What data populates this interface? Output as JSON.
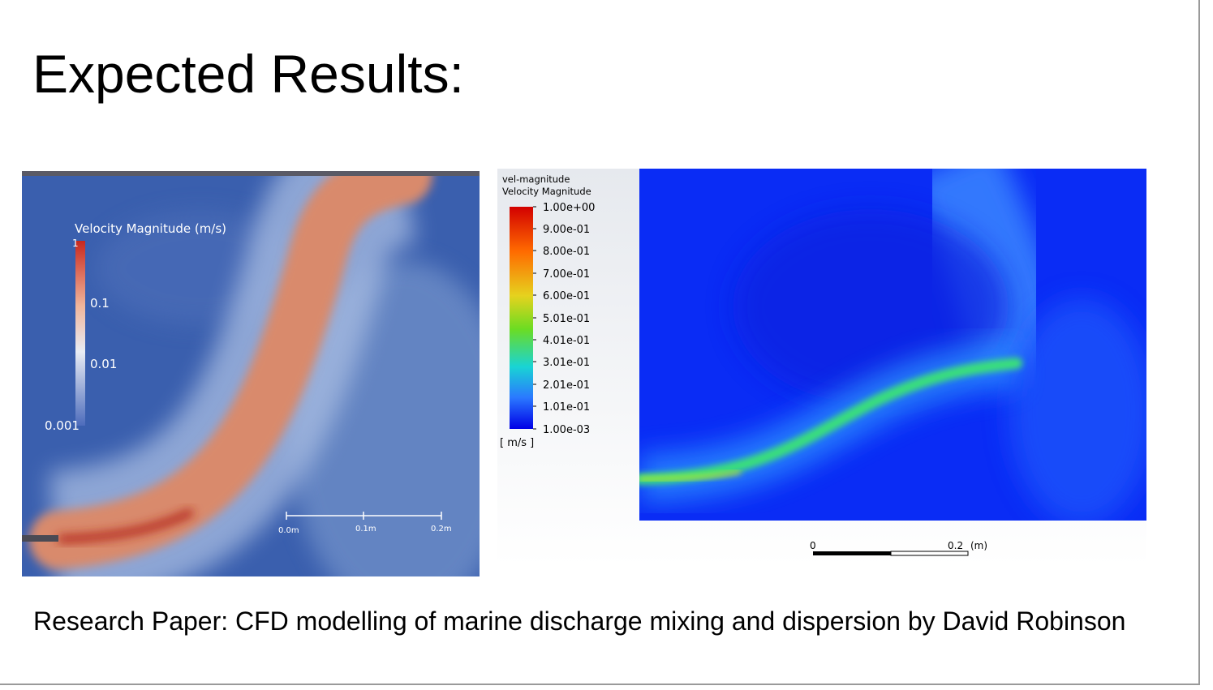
{
  "slide": {
    "title": "Expected Results:",
    "caption": "Research Paper: CFD modelling of marine discharge mixing and dispersion by David Robinson"
  },
  "figure_left": {
    "legend_title": "Velocity Magnitude (m/s)",
    "legend_ticks": [
      "1",
      "0.1",
      "0.01",
      "0.001"
    ],
    "scale_labels": [
      "0.0m",
      "0.1m",
      "0.2m"
    ]
  },
  "figure_right": {
    "legend_title_1": "vel-magnitude",
    "legend_title_2": "Velocity Magnitude",
    "legend_ticks": [
      "1.00e+00",
      "9.00e-01",
      "8.00e-01",
      "7.00e-01",
      "6.00e-01",
      "5.01e-01",
      "4.01e-01",
      "3.01e-01",
      "2.01e-01",
      "1.01e-01",
      "1.00e-03"
    ],
    "legend_unit": "[ m/s ]",
    "scale_start": "0",
    "scale_end": "0.2",
    "scale_unit": "(m)"
  },
  "colors": {
    "left_background": "#3a5fae",
    "left_plume": "#d98a6c",
    "right_background": "#0a2cf5",
    "right_plume": "#3ae07a"
  }
}
